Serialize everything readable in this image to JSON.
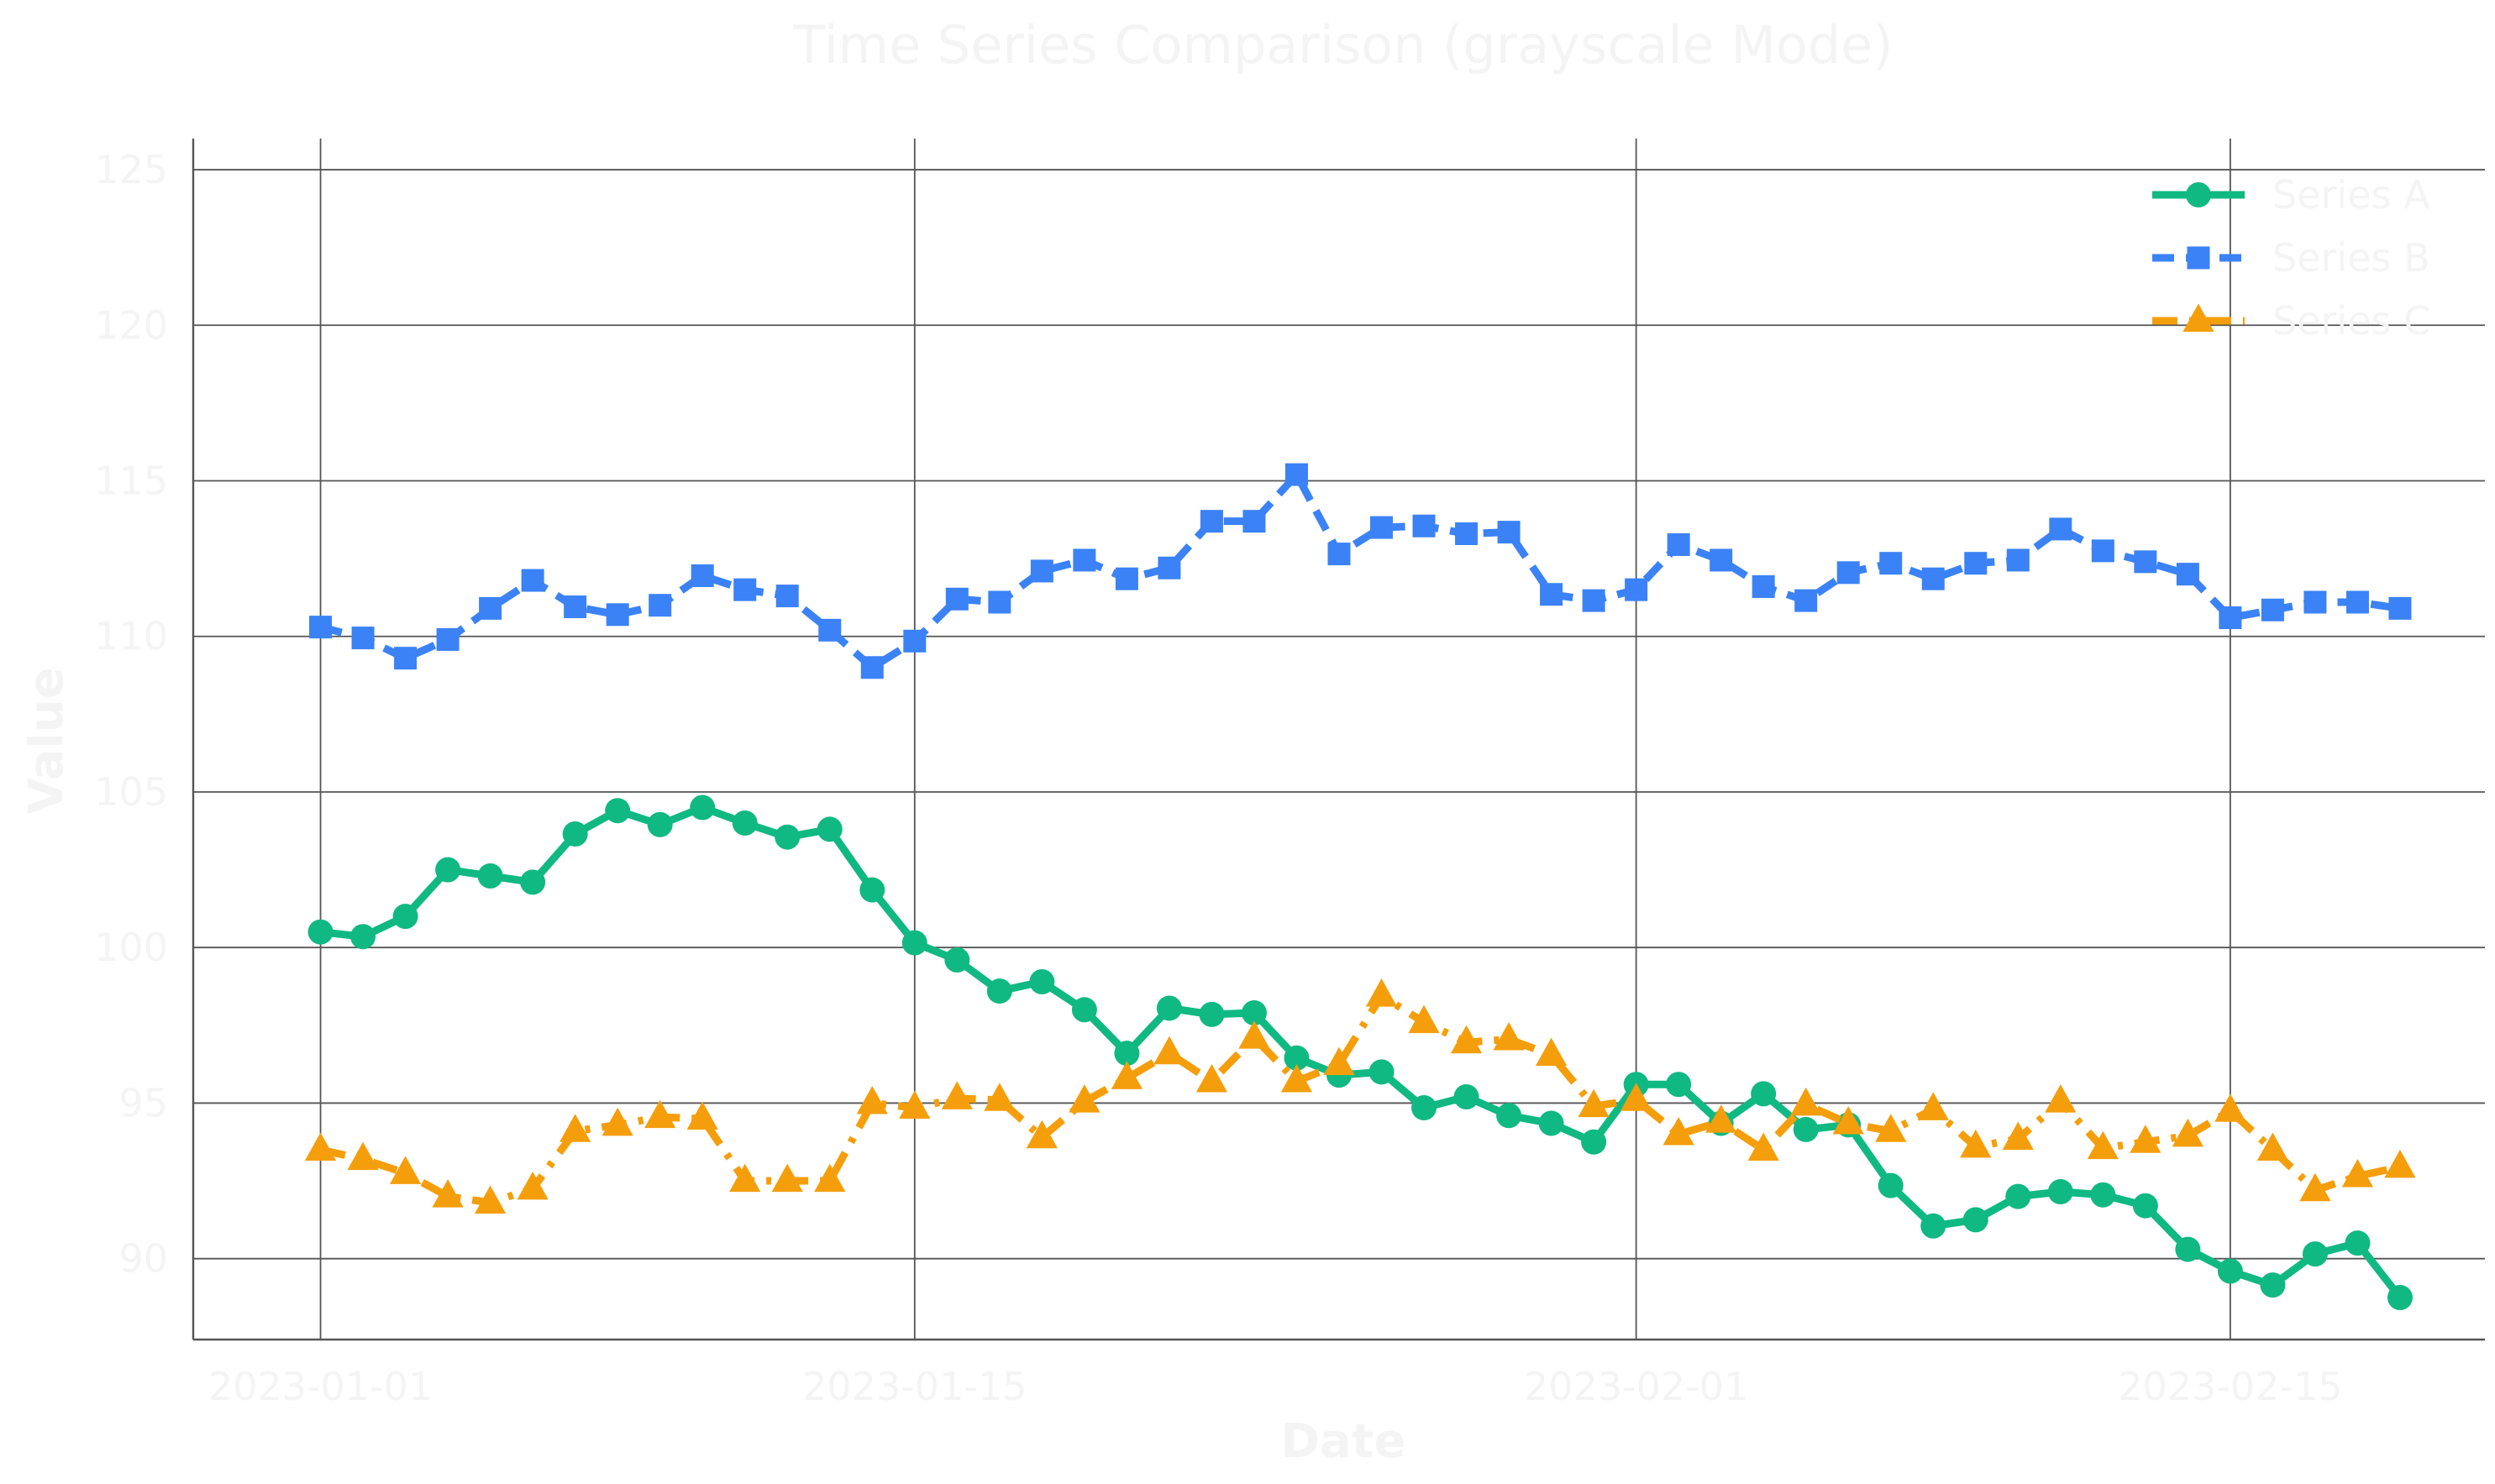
{
  "chart_data": {
    "type": "line",
    "title": "Time Series Comparison (grayscale Mode)",
    "xlabel": "Date",
    "ylabel": "Value",
    "x_start_date": "2023-01-01",
    "x_tick_labels": [
      "2023-01-01",
      "2023-01-15",
      "2023-02-01",
      "2023-02-15"
    ],
    "y_ticks": [
      90,
      95,
      100,
      105,
      110,
      115,
      120,
      125
    ],
    "ylim": [
      87.4,
      126.0
    ],
    "xlim_dates": [
      "2022-12-29",
      "2023-02-21"
    ],
    "grid": true,
    "legend_position": "top-right",
    "series": [
      {
        "name": "Series A",
        "color": "#10b981",
        "marker": "circle",
        "line_style": "solid",
        "values": [
          100.5,
          100.35,
          101.0,
          102.5,
          102.3,
          102.1,
          103.65,
          104.4,
          103.95,
          104.5,
          104.0,
          103.55,
          103.8,
          101.85,
          100.15,
          99.6,
          98.6,
          98.9,
          98.0,
          96.6,
          98.05,
          97.85,
          97.9,
          96.45,
          95.9,
          96.0,
          94.85,
          95.2,
          94.6,
          94.35,
          93.75,
          95.6,
          95.6,
          94.35,
          95.3,
          94.15,
          94.3,
          92.35,
          91.05,
          91.25,
          92.0,
          92.15,
          92.05,
          91.7,
          90.3,
          89.6,
          89.15,
          90.15,
          90.5,
          88.75
        ]
      },
      {
        "name": "Series B",
        "color": "#3b82f6",
        "marker": "square",
        "line_style": "dashed",
        "values": [
          110.3,
          109.95,
          109.3,
          109.9,
          110.9,
          111.8,
          110.95,
          110.7,
          111.0,
          111.95,
          111.5,
          111.3,
          110.2,
          109.0,
          109.85,
          111.2,
          111.1,
          112.1,
          112.45,
          111.85,
          112.2,
          113.7,
          113.7,
          115.2,
          112.65,
          113.5,
          113.55,
          113.3,
          113.35,
          111.35,
          111.15,
          111.5,
          112.95,
          112.45,
          111.6,
          111.15,
          112.05,
          112.35,
          111.85,
          112.35,
          112.45,
          113.45,
          112.75,
          112.4,
          112.0,
          110.6,
          110.85,
          111.1,
          111.1,
          110.9
        ]
      },
      {
        "name": "Series C",
        "color": "#f59e0b",
        "marker": "triangle",
        "line_style": "dashdot",
        "values": [
          93.5,
          93.2,
          92.75,
          92.0,
          91.8,
          92.25,
          94.1,
          94.3,
          94.55,
          94.5,
          92.5,
          92.5,
          92.5,
          95.0,
          94.85,
          95.15,
          95.1,
          93.9,
          95.05,
          95.8,
          96.6,
          95.7,
          97.1,
          95.7,
          96.25,
          98.45,
          97.6,
          96.95,
          97.05,
          96.55,
          94.9,
          95.1,
          94.0,
          94.4,
          93.5,
          94.95,
          94.35,
          94.1,
          94.8,
          93.6,
          93.85,
          95.05,
          93.55,
          93.75,
          93.95,
          94.75,
          93.5,
          92.2,
          92.65,
          92.95
        ]
      }
    ]
  }
}
